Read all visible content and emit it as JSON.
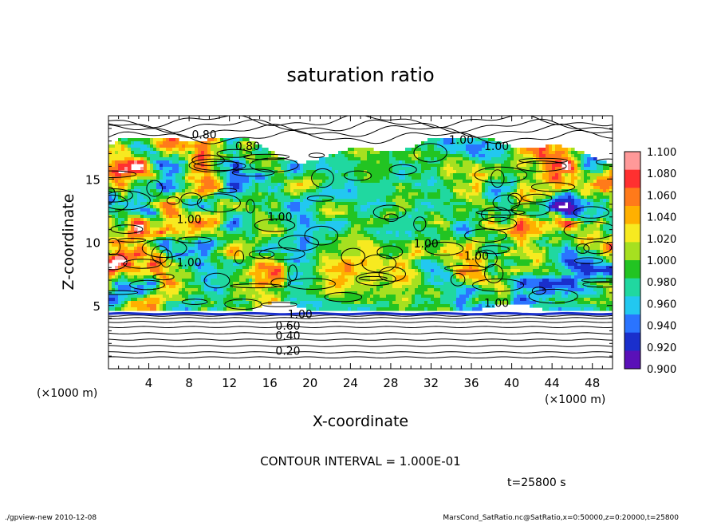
{
  "chart_data": {
    "type": "heatmap",
    "title": "saturation ratio",
    "xlabel": "X-coordinate",
    "ylabel": "Z-coordinate",
    "x_unit": "(×1000 m)",
    "y_unit": "(×1000 m)",
    "xlim": [
      0,
      50
    ],
    "ylim": [
      0,
      20
    ],
    "x_ticks": [
      "4",
      "8",
      "12",
      "16",
      "20",
      "24",
      "28",
      "32",
      "36",
      "40",
      "44",
      "48"
    ],
    "y_ticks": [
      "5",
      "10",
      "15"
    ],
    "colorbar": {
      "labels": [
        "1.100",
        "1.080",
        "1.060",
        "1.040",
        "1.020",
        "1.000",
        "0.980",
        "0.960",
        "0.940",
        "0.920",
        "0.900"
      ],
      "colors": [
        "#ff9999",
        "#ff3030",
        "#ff7a1a",
        "#ffb000",
        "#f7ea20",
        "#a6e020",
        "#22c422",
        "#20d8a0",
        "#22c8f0",
        "#2a74ff",
        "#1a2fcc",
        "#5a10b8"
      ]
    },
    "contour_labels": [
      "0.80",
      "0.80",
      "1.00",
      "1.00",
      "1.00",
      "1.00",
      "1.00",
      "1.00",
      "1.00",
      "1.00",
      "1.00",
      "0.60",
      "0.40",
      "0.20"
    ],
    "contour_interval": "CONTOUR INTERVAL = 1.000E-01",
    "time": "t=25800 s"
  },
  "footer": {
    "left": "./gpview-new   2010-12-08",
    "right": "MarsCond_SatRatio.nc@SatRatio,x=0:50000,z=0:20000,t=25800"
  }
}
